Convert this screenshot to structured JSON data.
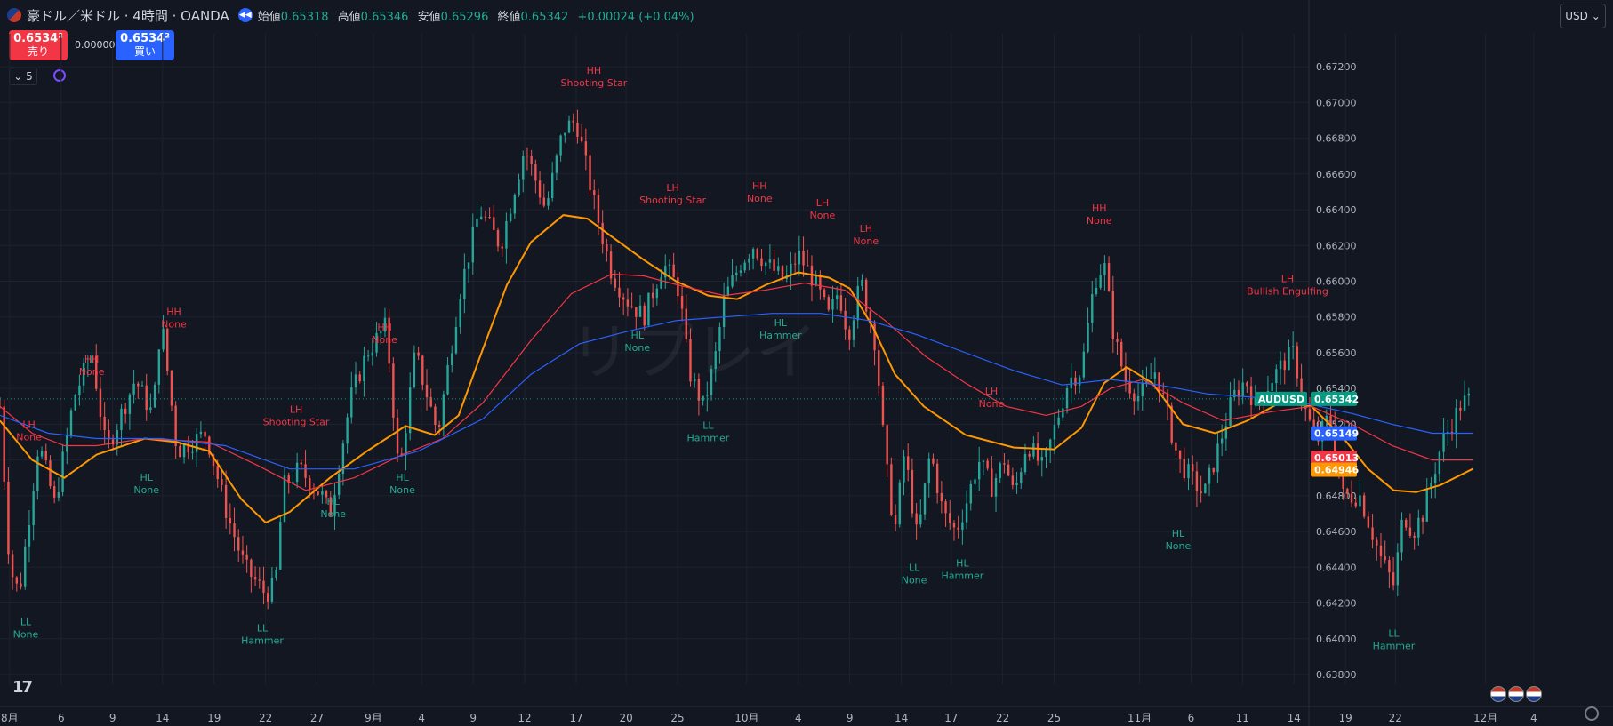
{
  "header": {
    "symbol_title": "豪ドル／米ドル · 4時間 · OANDA",
    "open_label": "始値",
    "open_value": "0.65318",
    "high_label": "高値",
    "high_value": "0.65346",
    "low_label": "安値",
    "low_value": "0.65296",
    "close_label": "終値",
    "close_value": "0.65342",
    "change": "+0.00024 (+0.04%)"
  },
  "trade": {
    "sell_price": "0.6534²",
    "sell_label": "売り",
    "spread": "0.00000",
    "buy_price": "0.6534²",
    "buy_label": "買い"
  },
  "indicator_toggle": "5",
  "currency": "USD",
  "watermark": "リプレイ",
  "colors": {
    "background": "#131722",
    "up": "#26a69a",
    "down": "#ef5350",
    "ma_orange": "#ff9800",
    "ma_red": "#f23645",
    "ma_blue": "#2962ff",
    "high_label": "#f23645",
    "low_label": "#22ab94"
  },
  "chart_data": {
    "type": "candlestick",
    "symbol": "AUDUSD",
    "timeframe": "4時間",
    "ylim": [
      0.6378,
      0.6735
    ],
    "xlim": [
      0,
      1000
    ],
    "y_ticks": [
      "0.67200",
      "0.67000",
      "0.66800",
      "0.66600",
      "0.66400",
      "0.66200",
      "0.66000",
      "0.65800",
      "0.65600",
      "0.65400",
      "0.65200",
      "0.65000",
      "0.64800",
      "0.64600",
      "0.64400",
      "0.64200",
      "0.64000",
      "0.63800"
    ],
    "x_ticks": [
      {
        "label": "8月",
        "x": 6
      },
      {
        "label": "6",
        "x": 38
      },
      {
        "label": "9",
        "x": 70
      },
      {
        "label": "14",
        "x": 101
      },
      {
        "label": "19",
        "x": 133
      },
      {
        "label": "22",
        "x": 165
      },
      {
        "label": "27",
        "x": 197
      },
      {
        "label": "9月",
        "x": 232
      },
      {
        "label": "4",
        "x": 262
      },
      {
        "label": "9",
        "x": 294
      },
      {
        "label": "12",
        "x": 326
      },
      {
        "label": "17",
        "x": 358
      },
      {
        "label": "20",
        "x": 389
      },
      {
        "label": "25",
        "x": 421
      },
      {
        "label": "10月",
        "x": 464
      },
      {
        "label": "4",
        "x": 496
      },
      {
        "label": "9",
        "x": 528
      },
      {
        "label": "14",
        "x": 560
      },
      {
        "label": "17",
        "x": 591
      },
      {
        "label": "22",
        "x": 623
      },
      {
        "label": "25",
        "x": 655
      },
      {
        "label": "11月",
        "x": 708
      },
      {
        "label": "6",
        "x": 740
      },
      {
        "label": "11",
        "x": 772
      },
      {
        "label": "14",
        "x": 804
      },
      {
        "label": "19",
        "x": 836
      },
      {
        "label": "22",
        "x": 867
      },
      {
        "label": "12月",
        "x": 923
      },
      {
        "label": "4",
        "x": 953
      }
    ],
    "anchors": [
      [
        0,
        0.653
      ],
      [
        6,
        0.644
      ],
      [
        12,
        0.6425
      ],
      [
        24,
        0.651
      ],
      [
        34,
        0.6475
      ],
      [
        46,
        0.6535
      ],
      [
        57,
        0.656
      ],
      [
        66,
        0.6505
      ],
      [
        84,
        0.6545
      ],
      [
        95,
        0.6525
      ],
      [
        100,
        0.658
      ],
      [
        110,
        0.6505
      ],
      [
        128,
        0.6515
      ],
      [
        141,
        0.647
      ],
      [
        152,
        0.644
      ],
      [
        165,
        0.6425
      ],
      [
        171,
        0.643
      ],
      [
        176,
        0.6485
      ],
      [
        186,
        0.6495
      ],
      [
        200,
        0.648
      ],
      [
        205,
        0.647
      ],
      [
        218,
        0.6535
      ],
      [
        228,
        0.656
      ],
      [
        240,
        0.6575
      ],
      [
        248,
        0.649
      ],
      [
        258,
        0.656
      ],
      [
        272,
        0.6515
      ],
      [
        278,
        0.655
      ],
      [
        286,
        0.6595
      ],
      [
        298,
        0.664
      ],
      [
        311,
        0.662
      ],
      [
        326,
        0.6675
      ],
      [
        339,
        0.664
      ],
      [
        350,
        0.6685
      ],
      [
        358,
        0.669
      ],
      [
        370,
        0.664
      ],
      [
        380,
        0.6605
      ],
      [
        389,
        0.659
      ],
      [
        400,
        0.658
      ],
      [
        412,
        0.661
      ],
      [
        422,
        0.6595
      ],
      [
        428,
        0.655
      ],
      [
        437,
        0.653
      ],
      [
        444,
        0.6555
      ],
      [
        450,
        0.659
      ],
      [
        460,
        0.661
      ],
      [
        468,
        0.662
      ],
      [
        476,
        0.661
      ],
      [
        488,
        0.66
      ],
      [
        496,
        0.6615
      ],
      [
        506,
        0.66
      ],
      [
        515,
        0.658
      ],
      [
        521,
        0.6595
      ],
      [
        527,
        0.657
      ],
      [
        535,
        0.66
      ],
      [
        544,
        0.6565
      ],
      [
        550,
        0.65
      ],
      [
        556,
        0.646
      ],
      [
        562,
        0.6505
      ],
      [
        570,
        0.6455
      ],
      [
        578,
        0.6505
      ],
      [
        586,
        0.647
      ],
      [
        594,
        0.646
      ],
      [
        600,
        0.6475
      ],
      [
        608,
        0.65
      ],
      [
        616,
        0.6485
      ],
      [
        624,
        0.65
      ],
      [
        630,
        0.648
      ],
      [
        638,
        0.651
      ],
      [
        648,
        0.6495
      ],
      [
        656,
        0.652
      ],
      [
        664,
        0.6545
      ],
      [
        672,
        0.655
      ],
      [
        680,
        0.66
      ],
      [
        686,
        0.661
      ],
      [
        692,
        0.657
      ],
      [
        699,
        0.6545
      ],
      [
        708,
        0.6535
      ],
      [
        718,
        0.655
      ],
      [
        724,
        0.653
      ],
      [
        732,
        0.65
      ],
      [
        740,
        0.649
      ],
      [
        748,
        0.648
      ],
      [
        758,
        0.651
      ],
      [
        766,
        0.6535
      ],
      [
        774,
        0.6545
      ],
      [
        780,
        0.653
      ],
      [
        790,
        0.6545
      ],
      [
        798,
        0.6555
      ],
      [
        804,
        0.656
      ],
      [
        810,
        0.653
      ],
      [
        818,
        0.651
      ],
      [
        826,
        0.6525
      ],
      [
        834,
        0.648
      ],
      [
        845,
        0.648
      ],
      [
        858,
        0.6445
      ],
      [
        866,
        0.643
      ],
      [
        872,
        0.647
      ],
      [
        878,
        0.646
      ],
      [
        884,
        0.647
      ],
      [
        890,
        0.649
      ],
      [
        896,
        0.651
      ],
      [
        902,
        0.652
      ],
      [
        908,
        0.6532
      ],
      [
        914,
        0.6534
      ]
    ],
    "moving_averages": [
      {
        "color": "#ff9800",
        "points": [
          [
            0,
            0.6522
          ],
          [
            20,
            0.65
          ],
          [
            40,
            0.649
          ],
          [
            60,
            0.6503
          ],
          [
            90,
            0.6512
          ],
          [
            110,
            0.651
          ],
          [
            130,
            0.6505
          ],
          [
            150,
            0.6478
          ],
          [
            165,
            0.6465
          ],
          [
            180,
            0.6471
          ],
          [
            205,
            0.649
          ],
          [
            228,
            0.6505
          ],
          [
            252,
            0.6519
          ],
          [
            270,
            0.6514
          ],
          [
            285,
            0.6525
          ],
          [
            300,
            0.6562
          ],
          [
            315,
            0.6598
          ],
          [
            330,
            0.6622
          ],
          [
            350,
            0.6637
          ],
          [
            365,
            0.6635
          ],
          [
            380,
            0.6625
          ],
          [
            400,
            0.6612
          ],
          [
            420,
            0.66
          ],
          [
            440,
            0.6592
          ],
          [
            458,
            0.659
          ],
          [
            476,
            0.6598
          ],
          [
            496,
            0.6605
          ],
          [
            515,
            0.6602
          ],
          [
            528,
            0.6596
          ],
          [
            542,
            0.6575
          ],
          [
            556,
            0.6548
          ],
          [
            574,
            0.653
          ],
          [
            600,
            0.6514
          ],
          [
            630,
            0.6507
          ],
          [
            655,
            0.6506
          ],
          [
            672,
            0.6518
          ],
          [
            686,
            0.6543
          ],
          [
            700,
            0.6552
          ],
          [
            716,
            0.6543
          ],
          [
            735,
            0.652
          ],
          [
            755,
            0.6515
          ],
          [
            775,
            0.6522
          ],
          [
            795,
            0.6532
          ],
          [
            815,
            0.653
          ],
          [
            835,
            0.6512
          ],
          [
            850,
            0.6495
          ],
          [
            866,
            0.6483
          ],
          [
            880,
            0.6482
          ],
          [
            895,
            0.6486
          ],
          [
            915,
            0.6495
          ]
        ]
      },
      {
        "color": "#f23645",
        "points": [
          [
            0,
            0.653
          ],
          [
            20,
            0.6515
          ],
          [
            40,
            0.6508
          ],
          [
            60,
            0.6508
          ],
          [
            90,
            0.6512
          ],
          [
            130,
            0.651
          ],
          [
            160,
            0.6497
          ],
          [
            190,
            0.6483
          ],
          [
            220,
            0.649
          ],
          [
            250,
            0.6503
          ],
          [
            275,
            0.6512
          ],
          [
            300,
            0.6532
          ],
          [
            330,
            0.6567
          ],
          [
            355,
            0.6593
          ],
          [
            380,
            0.6604
          ],
          [
            400,
            0.6603
          ],
          [
            425,
            0.6597
          ],
          [
            450,
            0.6592
          ],
          [
            475,
            0.6595
          ],
          [
            500,
            0.6599
          ],
          [
            525,
            0.6595
          ],
          [
            550,
            0.6578
          ],
          [
            575,
            0.6558
          ],
          [
            600,
            0.6543
          ],
          [
            625,
            0.653
          ],
          [
            650,
            0.6525
          ],
          [
            672,
            0.653
          ],
          [
            690,
            0.654
          ],
          [
            710,
            0.6545
          ],
          [
            735,
            0.6532
          ],
          [
            760,
            0.6522
          ],
          [
            790,
            0.6527
          ],
          [
            815,
            0.653
          ],
          [
            840,
            0.652
          ],
          [
            865,
            0.6508
          ],
          [
            890,
            0.65
          ],
          [
            915,
            0.65
          ]
        ]
      },
      {
        "color": "#2962ff",
        "points": [
          [
            0,
            0.6525
          ],
          [
            30,
            0.6515
          ],
          [
            60,
            0.6512
          ],
          [
            100,
            0.6512
          ],
          [
            140,
            0.6508
          ],
          [
            180,
            0.6495
          ],
          [
            220,
            0.6495
          ],
          [
            260,
            0.6505
          ],
          [
            300,
            0.6523
          ],
          [
            330,
            0.6548
          ],
          [
            360,
            0.6565
          ],
          [
            390,
            0.6572
          ],
          [
            420,
            0.6578
          ],
          [
            450,
            0.658
          ],
          [
            480,
            0.6582
          ],
          [
            510,
            0.6582
          ],
          [
            540,
            0.6578
          ],
          [
            570,
            0.657
          ],
          [
            600,
            0.656
          ],
          [
            630,
            0.655
          ],
          [
            660,
            0.6542
          ],
          [
            690,
            0.6545
          ],
          [
            720,
            0.6542
          ],
          [
            750,
            0.6537
          ],
          [
            780,
            0.6535
          ],
          [
            810,
            0.6532
          ],
          [
            840,
            0.6526
          ],
          [
            865,
            0.652
          ],
          [
            890,
            0.6515
          ],
          [
            915,
            0.6515
          ]
        ]
      }
    ],
    "swing_labels": [
      {
        "line1": "LL",
        "line2": "None",
        "x": 16,
        "y": 0.64075,
        "kind": "low"
      },
      {
        "line1": "LH",
        "line2": "None",
        "x": 18,
        "y": 0.6518,
        "kind": "high"
      },
      {
        "line1": "HH",
        "line2": "None",
        "x": 57,
        "y": 0.65545,
        "kind": "high"
      },
      {
        "line1": "HL",
        "line2": "None",
        "x": 91,
        "y": 0.64885,
        "kind": "low"
      },
      {
        "line1": "HH",
        "line2": "None",
        "x": 108,
        "y": 0.6581,
        "kind": "high"
      },
      {
        "line1": "LL",
        "line2": "Hammer",
        "x": 163,
        "y": 0.6404,
        "kind": "low"
      },
      {
        "line1": "LH",
        "line2": "Shooting Star",
        "x": 184,
        "y": 0.65265,
        "kind": "high"
      },
      {
        "line1": "HL",
        "line2": "None",
        "x": 207,
        "y": 0.6475,
        "kind": "low"
      },
      {
        "line1": "HH",
        "line2": "None",
        "x": 239,
        "y": 0.65725,
        "kind": "high"
      },
      {
        "line1": "HL",
        "line2": "None",
        "x": 250,
        "y": 0.64885,
        "kind": "low"
      },
      {
        "line1": "HH",
        "line2": "Shooting Star",
        "x": 369,
        "y": 0.6716,
        "kind": "high"
      },
      {
        "line1": "LH",
        "line2": "Shooting Star",
        "x": 418,
        "y": 0.66505,
        "kind": "high"
      },
      {
        "line1": "HL",
        "line2": "None",
        "x": 396,
        "y": 0.6568,
        "kind": "low"
      },
      {
        "line1": "LL",
        "line2": "Hammer",
        "x": 440,
        "y": 0.65175,
        "kind": "low"
      },
      {
        "line1": "HH",
        "line2": "None",
        "x": 472,
        "y": 0.66515,
        "kind": "high"
      },
      {
        "line1": "HL",
        "line2": "Hammer",
        "x": 485,
        "y": 0.6575,
        "kind": "low"
      },
      {
        "line1": "LH",
        "line2": "None",
        "x": 511,
        "y": 0.6642,
        "kind": "high"
      },
      {
        "line1": "LH",
        "line2": "None",
        "x": 538,
        "y": 0.66275,
        "kind": "high"
      },
      {
        "line1": "LL",
        "line2": "None",
        "x": 568,
        "y": 0.6438,
        "kind": "low"
      },
      {
        "line1": "HL",
        "line2": "Hammer",
        "x": 598,
        "y": 0.64405,
        "kind": "low"
      },
      {
        "line1": "LH",
        "line2": "None",
        "x": 616,
        "y": 0.65365,
        "kind": "high"
      },
      {
        "line1": "HH",
        "line2": "None",
        "x": 683,
        "y": 0.6639,
        "kind": "high"
      },
      {
        "line1": "HL",
        "line2": "None",
        "x": 732,
        "y": 0.6457,
        "kind": "low"
      },
      {
        "line1": "LH",
        "line2": "Bullish Engulfing",
        "x": 800,
        "y": 0.65995,
        "kind": "high"
      },
      {
        "line1": "LL",
        "line2": "Hammer",
        "x": 866,
        "y": 0.6401,
        "kind": "low"
      }
    ],
    "price_labels": [
      {
        "text": "0.65342",
        "value": 0.65342,
        "color": "#089981",
        "name": "AUDUSD"
      },
      {
        "text": "0.65149",
        "value": 0.65149,
        "color": "#2962ff"
      },
      {
        "text": "0.65013",
        "value": 0.65013,
        "color": "#f23645"
      },
      {
        "text": "0.64946",
        "value": 0.64946,
        "color": "#ff9800"
      }
    ]
  }
}
